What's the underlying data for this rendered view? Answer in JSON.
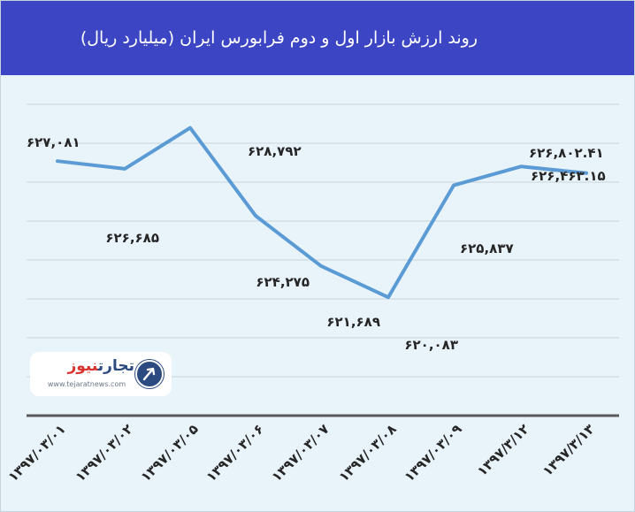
{
  "header": {
    "title": "روند ارزش بازار اول و دوم فرابورس  ایران (میلیارد ریال)"
  },
  "logo": {
    "name_main": "تجارت",
    "name_accent": "نیوز",
    "url": "www.tejaratnews.com"
  },
  "colors": {
    "header_bg": "#3c46c4",
    "plot_bg": "#e9f3fa",
    "line": "#5b9bd5",
    "grid": "#c9d3da",
    "axis": "#595959",
    "text": "#262626"
  },
  "chart_data": {
    "type": "line",
    "title": "روند ارزش بازار اول و دوم فرابورس  ایران (میلیارد ریال)",
    "categories": [
      "۱۳۹۷/۰۳/۰۱",
      "۱۳۹۷/۰۳/۰۲",
      "۱۳۹۷/۰۳/۰۵",
      "۱۳۹۷/۰۳/۰۶",
      "۱۳۹۷/۰۳/۰۷",
      "۱۳۹۷/۰۳/۰۸",
      "۱۳۹۷/۰۳/۰۹",
      "۱۳۹۷/۳/۱۲",
      "۱۳۹۷/۳/۱۳"
    ],
    "series": [
      {
        "values": [
          627081,
          626685,
          628792,
          624275,
          621689,
          620083,
          625837,
          626802.41,
          626463.15
        ],
        "labels": [
          "۶۲۷,۰۸۱",
          "۶۲۶,۶۸۵",
          "۶۲۸,۷۹۲",
          "۶۲۴,۲۷۵",
          "۶۲۱,۶۸۹",
          "۶۲۰,۰۸۳",
          "۶۲۵,۸۳۷",
          "۶۲۶,۸۰۲.۴۱",
          "۶۲۶,۴۶۳.۱۵"
        ]
      }
    ],
    "ylim": [
      614000,
      632000
    ],
    "grid": true,
    "legend": "none"
  }
}
